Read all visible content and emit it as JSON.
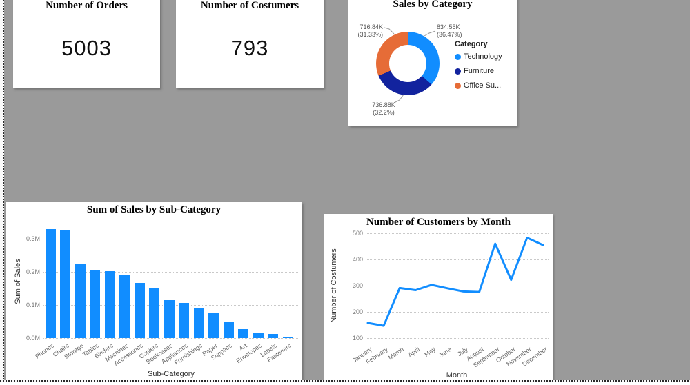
{
  "kpis": [
    {
      "title": "Number of Orders",
      "value": "5003"
    },
    {
      "title": "Number of Costumers",
      "value": "793"
    }
  ],
  "chart_data": [
    {
      "type": "pie",
      "subtype": "donut",
      "title": "Sales by Category",
      "legend_title": "Category",
      "legend_position": "right",
      "slices": [
        {
          "label": "Technology",
          "legend_label": "Technology",
          "value": 834550,
          "value_label": "834.55K",
          "pct": 36.47,
          "pct_label": "(36.47%)",
          "color": "#118DFF"
        },
        {
          "label": "Furniture",
          "legend_label": "Furniture",
          "value": 736880,
          "value_label": "736.88K",
          "pct": 32.2,
          "pct_label": "(32.2%)",
          "color": "#12239E"
        },
        {
          "label": "Office Supplies",
          "legend_label": "Office Su...",
          "value": 716840,
          "value_label": "716.84K",
          "pct": 31.33,
          "pct_label": "(31.33%)",
          "color": "#E66C37"
        }
      ]
    },
    {
      "type": "bar",
      "title": "Sum of Sales by Sub-Category",
      "xlabel": "Sub-Category",
      "ylabel": "Sum of Sales",
      "categories": [
        "Phones",
        "Chairs",
        "Storage",
        "Tables",
        "Binders",
        "Machines",
        "Accessories",
        "Copiers",
        "Bookcases",
        "Appliances",
        "Furnishings",
        "Paper",
        "Supplies",
        "Art",
        "Envelopes",
        "Labels",
        "Fasteners"
      ],
      "values_millions": [
        0.33,
        0.328,
        0.224,
        0.207,
        0.203,
        0.189,
        0.167,
        0.15,
        0.115,
        0.107,
        0.092,
        0.078,
        0.047,
        0.027,
        0.016,
        0.012,
        0.003
      ],
      "yticks": [
        {
          "label": "0.0M",
          "value": 0.0
        },
        {
          "label": "0.1M",
          "value": 0.1
        },
        {
          "label": "0.2M",
          "value": 0.2
        },
        {
          "label": "0.3M",
          "value": 0.3
        }
      ],
      "ylim": [
        0,
        0.348
      ],
      "grid": "dotted-horizontal",
      "bar_color": "#118DFF"
    },
    {
      "type": "line",
      "title": "Number of Customers by Month",
      "xlabel": "Month",
      "ylabel": "Number of Costumers",
      "categories": [
        "January",
        "February",
        "March",
        "April",
        "May",
        "June",
        "July",
        "August",
        "September",
        "October",
        "November",
        "December"
      ],
      "values": [
        158,
        147,
        291,
        283,
        303,
        290,
        278,
        276,
        460,
        322,
        483,
        455
      ],
      "yticks": [
        {
          "label": "100",
          "value": 100
        },
        {
          "label": "200",
          "value": 200
        },
        {
          "label": "300",
          "value": 300
        },
        {
          "label": "400",
          "value": 400
        },
        {
          "label": "500",
          "value": 500
        }
      ],
      "ylim": [
        100,
        520
      ],
      "grid": "dotted-horizontal",
      "line_color": "#118DFF"
    }
  ],
  "colors": {
    "canvas_bg": "#9a9a9a",
    "card_bg": "#ffffff",
    "accent_blue": "#118DFF",
    "dark_blue": "#12239E",
    "orange": "#E66C37"
  }
}
